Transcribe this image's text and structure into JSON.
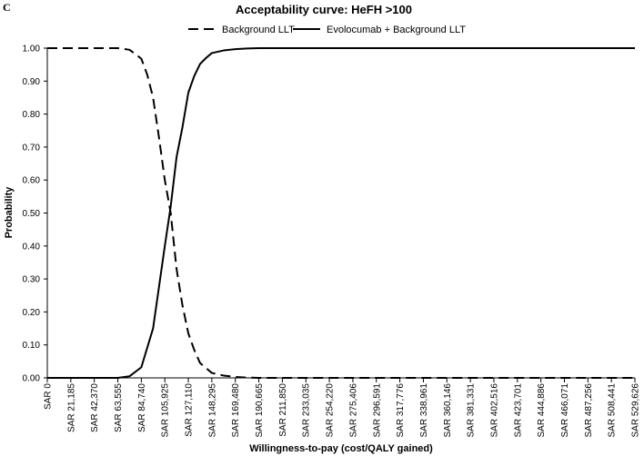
{
  "panel_label": "C",
  "chart_data": {
    "type": "line",
    "title": "Acceptability curve: HeFH >100",
    "xlabel": "Willingness-to-pay (cost/QALY gained)",
    "ylabel": "Probability",
    "ylim": [
      0,
      1
    ],
    "yticks": [
      "0.00",
      "0.10",
      "0.20",
      "0.30",
      "0.40",
      "0.50",
      "0.60",
      "0.70",
      "0.80",
      "0.90",
      "1.00"
    ],
    "x_tick_labels": [
      "SAR 0",
      "SAR 21,185",
      "SAR 42,370",
      "SAR 63,555",
      "SAR 84,740",
      "SAR 105,925",
      "SAR 127,110",
      "SAR 148,295",
      "SAR 169,480",
      "SAR 190,665",
      "SAR 211,850",
      "SAR 233,035",
      "SAR 254,220",
      "SAR 275,406",
      "SAR 296,591",
      "SAR 317,776",
      "SAR 338,961",
      "SAR 360,146",
      "SAR 381,331",
      "SAR 402,516",
      "SAR 423,701",
      "SAR 444,886",
      "SAR 466,071",
      "SAR 487,256",
      "SAR 508,441",
      "SAR 529,626"
    ],
    "x_tick_values": [
      0,
      21185,
      42370,
      63555,
      84740,
      105925,
      127110,
      148295,
      169480,
      190665,
      211850,
      233035,
      254220,
      275406,
      296591,
      317776,
      338961,
      360146,
      381331,
      402516,
      423701,
      444886,
      466071,
      487256,
      508441,
      529626
    ],
    "xlim": [
      0,
      529626
    ],
    "legend_position": "top-center",
    "grid": false,
    "series": [
      {
        "name": "Background LLT",
        "style": "dashed",
        "color": "#000000",
        "x": [
          0,
          21185,
          42370,
          63555,
          74148,
          84740,
          90036,
          95333,
          100629,
          105925,
          111221,
          116518,
          121814,
          127110,
          132406,
          137703,
          142999,
          148295,
          158888,
          169480,
          180073,
          190665,
          529626
        ],
        "y": [
          1.0,
          1.0,
          1.0,
          1.0,
          0.995,
          0.968,
          0.92,
          0.85,
          0.73,
          0.6,
          0.5,
          0.33,
          0.22,
          0.135,
          0.085,
          0.045,
          0.03,
          0.015,
          0.007,
          0.003,
          0.001,
          0.0,
          0.0
        ]
      },
      {
        "name": "Evolocumab + Background LLT",
        "style": "solid",
        "color": "#000000",
        "x": [
          0,
          21185,
          42370,
          63555,
          74148,
          84740,
          95333,
          105925,
          111221,
          116518,
          121814,
          127110,
          132406,
          137703,
          142999,
          148295,
          158888,
          169480,
          180073,
          190665,
          529626
        ],
        "y": [
          0.0,
          0.0,
          0.0,
          0.0,
          0.005,
          0.032,
          0.15,
          0.4,
          0.52,
          0.67,
          0.76,
          0.865,
          0.915,
          0.952,
          0.97,
          0.985,
          0.993,
          0.997,
          0.999,
          1.0,
          1.0
        ]
      }
    ]
  }
}
